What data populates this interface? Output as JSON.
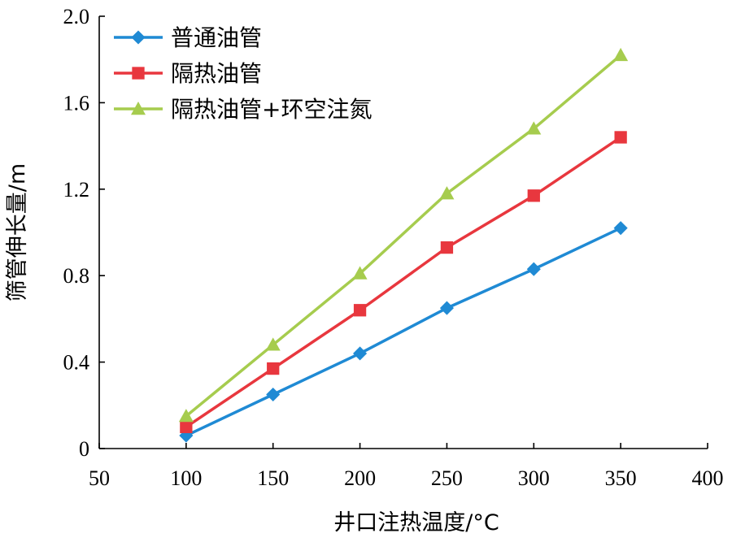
{
  "chart_data": {
    "type": "line",
    "xlabel": "井口注热温度/°C",
    "ylabel": "筛管伸长量/m",
    "xlim": [
      50,
      400
    ],
    "ylim": [
      0,
      2.0
    ],
    "x_ticks": [
      "50",
      "100",
      "150",
      "200",
      "250",
      "300",
      "350",
      "400"
    ],
    "y_ticks": [
      "0",
      "0.4",
      "0.8",
      "1.2",
      "1.6",
      "2.0"
    ],
    "grid": false,
    "legend_position": "top-left",
    "x": [
      100,
      150,
      200,
      250,
      300,
      350
    ],
    "series": [
      {
        "name": "普通油管",
        "values": [
          0.06,
          0.25,
          0.44,
          0.65,
          0.83,
          1.02
        ],
        "color": "#1f8ad4",
        "marker": "diamond"
      },
      {
        "name": "隔热油管",
        "values": [
          0.1,
          0.37,
          0.64,
          0.93,
          1.17,
          1.44
        ],
        "color": "#e8373e",
        "marker": "square"
      },
      {
        "name": "隔热油管+环空注氮",
        "values": [
          0.15,
          0.48,
          0.81,
          1.18,
          1.48,
          1.82
        ],
        "color": "#a6cc4e",
        "marker": "triangle"
      }
    ]
  }
}
